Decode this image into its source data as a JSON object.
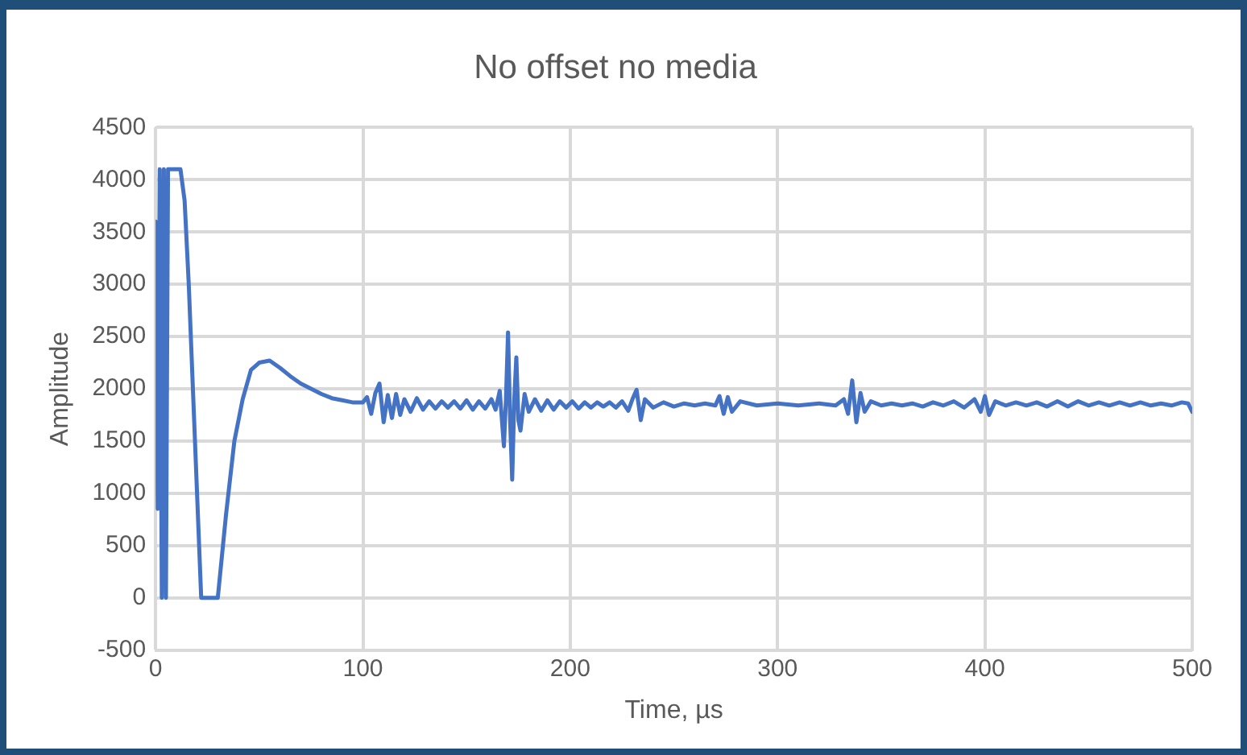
{
  "chart_data": {
    "type": "line",
    "title": "No offset no media",
    "xlabel": "Time, µs",
    "ylabel": "Amplitude",
    "x": [
      0,
      1,
      2,
      3,
      4,
      5,
      6,
      12,
      14,
      16,
      22,
      30,
      34,
      38,
      42,
      46,
      50,
      55,
      60,
      65,
      70,
      75,
      80,
      85,
      90,
      95,
      100,
      102,
      104,
      106,
      108,
      110,
      112,
      114,
      116,
      118,
      120,
      123,
      126,
      129,
      132,
      135,
      138,
      141,
      144,
      147,
      150,
      153,
      156,
      159,
      162,
      164,
      166,
      168,
      169,
      170,
      171,
      172,
      173,
      174,
      175,
      176,
      178,
      180,
      183,
      186,
      189,
      192,
      195,
      198,
      201,
      204,
      207,
      210,
      213,
      216,
      219,
      222,
      225,
      228,
      230,
      232,
      234,
      236,
      240,
      245,
      250,
      255,
      260,
      265,
      270,
      272,
      274,
      276,
      278,
      282,
      290,
      300,
      310,
      320,
      328,
      332,
      334,
      336,
      338,
      340,
      342,
      345,
      350,
      355,
      360,
      365,
      370,
      375,
      380,
      385,
      390,
      395,
      398,
      400,
      402,
      405,
      410,
      415,
      420,
      425,
      430,
      435,
      440,
      445,
      450,
      455,
      460,
      465,
      470,
      475,
      480,
      485,
      490,
      495,
      498,
      500
    ],
    "series": [
      {
        "color": "#4472c4",
        "values": [
          3600,
          850,
          4100,
          0,
          4100,
          0,
          4100,
          4100,
          3800,
          3000,
          0,
          0,
          800,
          1500,
          1900,
          2180,
          2250,
          2270,
          2200,
          2120,
          2050,
          2000,
          1950,
          1910,
          1890,
          1870,
          1870,
          1920,
          1760,
          1960,
          2050,
          1680,
          1940,
          1720,
          1950,
          1750,
          1900,
          1780,
          1910,
          1800,
          1880,
          1810,
          1880,
          1820,
          1880,
          1810,
          1890,
          1800,
          1880,
          1810,
          1900,
          1800,
          1980,
          1450,
          1900,
          2540,
          1700,
          1130,
          1900,
          2300,
          1700,
          1600,
          1950,
          1780,
          1900,
          1790,
          1890,
          1800,
          1880,
          1820,
          1880,
          1810,
          1870,
          1820,
          1870,
          1830,
          1870,
          1820,
          1880,
          1790,
          1900,
          1990,
          1700,
          1900,
          1820,
          1870,
          1830,
          1860,
          1840,
          1860,
          1840,
          1930,
          1760,
          1920,
          1780,
          1880,
          1840,
          1860,
          1840,
          1860,
          1840,
          1900,
          1760,
          2080,
          1680,
          1960,
          1780,
          1880,
          1840,
          1860,
          1840,
          1860,
          1830,
          1870,
          1840,
          1880,
          1820,
          1900,
          1780,
          1930,
          1750,
          1880,
          1840,
          1870,
          1840,
          1870,
          1830,
          1880,
          1830,
          1880,
          1840,
          1870,
          1840,
          1870,
          1840,
          1870,
          1840,
          1860,
          1840,
          1870,
          1860,
          1780
        ]
      }
    ],
    "xlim": [
      0,
      500
    ],
    "xticks": [
      0,
      100,
      200,
      300,
      400,
      500
    ],
    "ylim": [
      -500,
      4500
    ],
    "yticks": [
      -500,
      0,
      500,
      1000,
      1500,
      2000,
      2500,
      3000,
      3500,
      4000,
      4500
    ],
    "grid": true,
    "legend": false,
    "marker": "none",
    "line_style": "solid"
  }
}
